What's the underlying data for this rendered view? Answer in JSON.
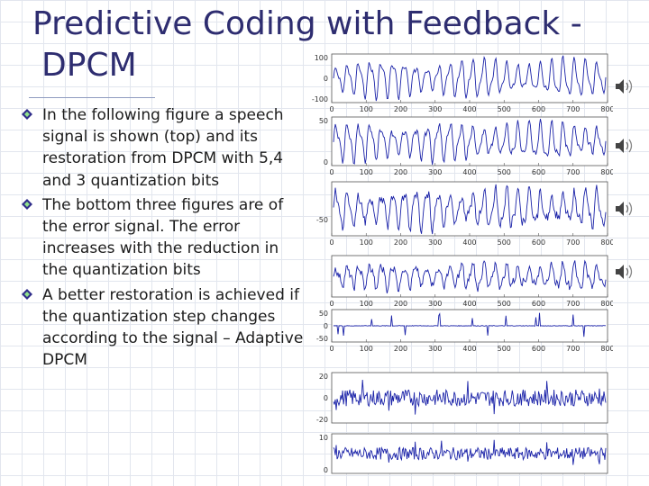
{
  "slide": {
    "title_line1": "Predictive Coding with Feedback -",
    "title_line2": "DPCM",
    "bullets": [
      "In the following figure a speech signal is shown (top) and its restoration from DPCM with 5,4 and 3 quantization bits",
      "The bottom three figures are of the error signal. The error increases with the reduction in the quantization bits",
      "A better restoration is achieved if the quantization step changes according to the signal – Adaptive DPCM"
    ]
  },
  "colors": {
    "title": "#2e2d70",
    "bullet": "#2f2c8a",
    "trace": "#1a22a8",
    "axis": "#555555"
  },
  "icons": [
    "bullet-diamond-icon",
    "speaker-icon"
  ],
  "chart_data": [
    {
      "type": "line",
      "name": "original",
      "x_ticks": [
        "0",
        "100",
        "200",
        "300",
        "400",
        "500",
        "600",
        "700",
        "800"
      ],
      "y_ticks": [
        "100",
        "0",
        "-100"
      ],
      "xlim": [
        0,
        800
      ],
      "ylim": [
        -100,
        100
      ]
    },
    {
      "type": "line",
      "name": "dpcm-5bit",
      "x_ticks": [
        "0",
        "100",
        "200",
        "300",
        "400",
        "500",
        "600",
        "700",
        "800"
      ],
      "y_ticks": [
        "50",
        "0"
      ],
      "xlim": [
        0,
        800
      ],
      "ylim": [
        -100,
        100
      ]
    },
    {
      "type": "line",
      "name": "dpcm-4bit",
      "x_ticks": [
        "0",
        "100",
        "200",
        "300",
        "400",
        "500",
        "600",
        "700",
        "800"
      ],
      "y_ticks": [
        "-50"
      ],
      "xlim": [
        0,
        800
      ],
      "ylim": [
        -100,
        100
      ]
    },
    {
      "type": "line",
      "name": "dpcm-3bit",
      "x_ticks": [
        "0",
        "100",
        "200",
        "300",
        "400",
        "500",
        "600",
        "700",
        "800"
      ],
      "y_ticks": [],
      "xlim": [
        0,
        800
      ],
      "ylim": [
        -100,
        100
      ]
    },
    {
      "type": "line",
      "name": "error-5bit",
      "x_ticks": [
        "0",
        "100",
        "200",
        "300",
        "400",
        "500",
        "600",
        "700",
        "800"
      ],
      "y_ticks": [
        "50",
        "0",
        "-50"
      ],
      "xlim": [
        0,
        800
      ],
      "ylim": [
        -50,
        50
      ]
    },
    {
      "type": "line",
      "name": "error-4bit",
      "x_ticks": [],
      "y_ticks": [
        "20",
        "0",
        "-20"
      ],
      "xlim": [
        0,
        800
      ],
      "ylim": [
        -20,
        20
      ]
    },
    {
      "type": "line",
      "name": "error-3bit",
      "x_ticks": [],
      "y_ticks": [
        "10",
        "0"
      ],
      "xlim": [
        0,
        800
      ],
      "ylim": [
        -10,
        10
      ]
    }
  ]
}
